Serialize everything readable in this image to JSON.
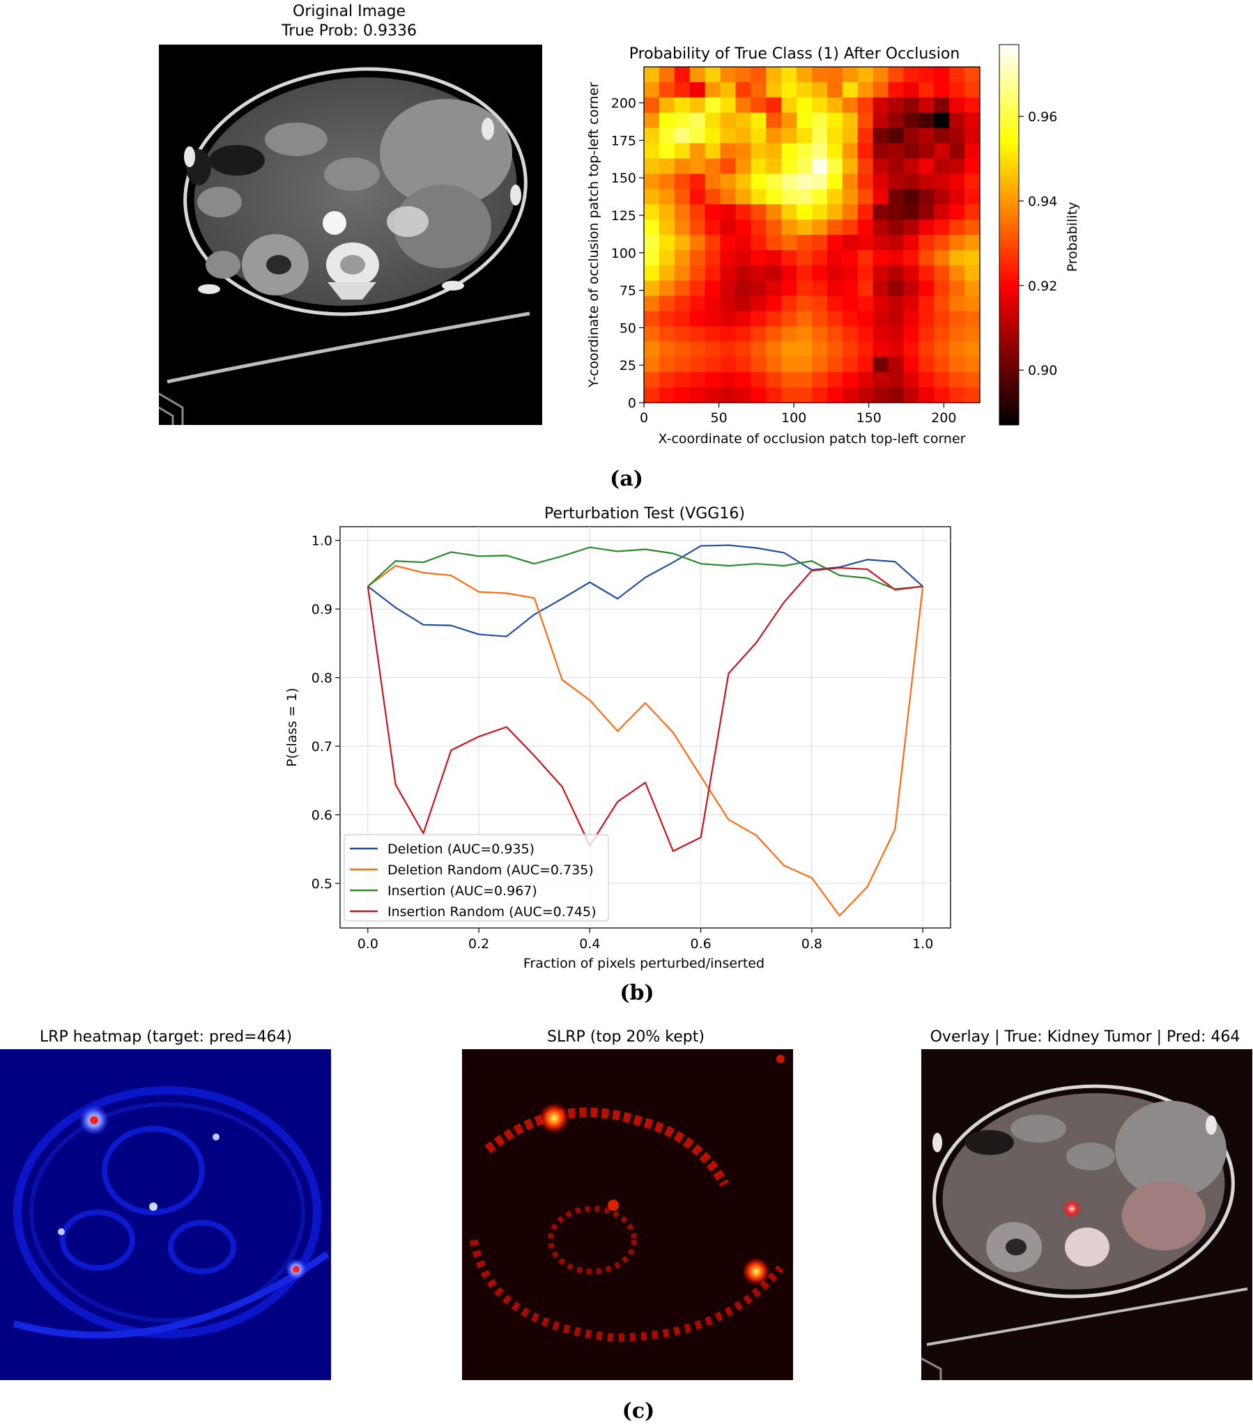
{
  "panel_a": {
    "caption": "(a)",
    "original": {
      "title": "Original Image",
      "subtitle": "True Prob: 0.9336"
    }
  },
  "panel_b": {
    "caption": "(b)"
  },
  "panel_c": {
    "caption": "(c)",
    "lrp_title": "LRP heatmap (target: pred=464)",
    "slrp_title": "SLRP (top 20% kept)",
    "overlay_title": "Overlay | True: Kidney Tumor | Pred: 464"
  },
  "chart_data": [
    {
      "type": "heatmap",
      "title": "Probability of True Class (1) After Occlusion",
      "xlabel": "X-coordinate of occlusion patch top-left corner",
      "ylabel": "Y-coordinate of occlusion patch top-left corner",
      "x_ticks": [
        "0",
        "50",
        "100",
        "150",
        "200"
      ],
      "y_ticks": [
        "0",
        "25",
        "50",
        "75",
        "100",
        "125",
        "150",
        "175",
        "200"
      ],
      "xlim": [
        0,
        224
      ],
      "ylim": [
        0,
        224
      ],
      "grid_cells": 22,
      "colorbar": {
        "label": "Probability",
        "min": 0.887,
        "max": 0.977,
        "ticks": [
          "0.90",
          "0.92",
          "0.94",
          "0.96"
        ],
        "tick_values": [
          0.9,
          0.92,
          0.94,
          0.96
        ],
        "cmap": "hot"
      },
      "rows_top_to_bottom": [
        [
          0.945,
          0.935,
          0.922,
          0.94,
          0.948,
          0.938,
          0.935,
          0.932,
          0.944,
          0.95,
          0.942,
          0.936,
          0.935,
          0.94,
          0.944,
          0.938,
          0.93,
          0.924,
          0.922,
          0.92,
          0.926,
          0.93
        ],
        [
          0.94,
          0.93,
          0.925,
          0.918,
          0.94,
          0.945,
          0.928,
          0.934,
          0.946,
          0.952,
          0.948,
          0.944,
          0.935,
          0.95,
          0.94,
          0.933,
          0.922,
          0.918,
          0.925,
          0.92,
          0.924,
          0.928
        ],
        [
          0.932,
          0.944,
          0.95,
          0.946,
          0.958,
          0.95,
          0.936,
          0.93,
          0.925,
          0.948,
          0.954,
          0.95,
          0.944,
          0.936,
          0.928,
          0.914,
          0.91,
          0.906,
          0.913,
          0.904,
          0.918,
          0.922
        ],
        [
          0.94,
          0.955,
          0.958,
          0.962,
          0.95,
          0.944,
          0.946,
          0.952,
          0.932,
          0.94,
          0.955,
          0.96,
          0.952,
          0.946,
          0.93,
          0.912,
          0.906,
          0.9,
          0.896,
          0.887,
          0.91,
          0.916
        ],
        [
          0.948,
          0.958,
          0.965,
          0.96,
          0.952,
          0.946,
          0.944,
          0.95,
          0.94,
          0.944,
          0.95,
          0.962,
          0.95,
          0.945,
          0.926,
          0.902,
          0.898,
          0.906,
          0.91,
          0.905,
          0.908,
          0.915
        ],
        [
          0.95,
          0.956,
          0.95,
          0.94,
          0.948,
          0.936,
          0.938,
          0.946,
          0.944,
          0.955,
          0.96,
          0.965,
          0.952,
          0.94,
          0.924,
          0.906,
          0.908,
          0.904,
          0.908,
          0.914,
          0.906,
          0.918
        ],
        [
          0.946,
          0.944,
          0.938,
          0.94,
          0.936,
          0.93,
          0.94,
          0.95,
          0.946,
          0.956,
          0.962,
          0.975,
          0.96,
          0.944,
          0.928,
          0.912,
          0.908,
          0.912,
          0.918,
          0.91,
          0.912,
          0.92
        ],
        [
          0.94,
          0.936,
          0.93,
          0.924,
          0.936,
          0.94,
          0.946,
          0.955,
          0.96,
          0.966,
          0.97,
          0.968,
          0.955,
          0.938,
          0.926,
          0.916,
          0.91,
          0.908,
          0.912,
          0.914,
          0.918,
          0.924
        ],
        [
          0.944,
          0.94,
          0.932,
          0.922,
          0.93,
          0.936,
          0.942,
          0.95,
          0.956,
          0.962,
          0.964,
          0.958,
          0.948,
          0.94,
          0.93,
          0.918,
          0.902,
          0.898,
          0.904,
          0.91,
          0.916,
          0.922
        ],
        [
          0.95,
          0.944,
          0.936,
          0.928,
          0.92,
          0.918,
          0.924,
          0.93,
          0.938,
          0.948,
          0.954,
          0.95,
          0.944,
          0.936,
          0.924,
          0.904,
          0.902,
          0.9,
          0.906,
          0.914,
          0.92,
          0.926
        ],
        [
          0.956,
          0.946,
          0.938,
          0.93,
          0.922,
          0.916,
          0.92,
          0.926,
          0.932,
          0.94,
          0.944,
          0.94,
          0.932,
          0.928,
          0.92,
          0.91,
          0.906,
          0.91,
          0.918,
          0.922,
          0.928,
          0.932
        ],
        [
          0.96,
          0.95,
          0.944,
          0.936,
          0.928,
          0.92,
          0.918,
          0.924,
          0.93,
          0.934,
          0.93,
          0.928,
          0.92,
          0.916,
          0.918,
          0.914,
          0.912,
          0.918,
          0.926,
          0.93,
          0.936,
          0.94
        ],
        [
          0.958,
          0.948,
          0.94,
          0.932,
          0.926,
          0.918,
          0.916,
          0.92,
          0.918,
          0.924,
          0.928,
          0.924,
          0.918,
          0.92,
          0.926,
          0.92,
          0.918,
          0.922,
          0.93,
          0.936,
          0.944,
          0.946
        ],
        [
          0.952,
          0.944,
          0.938,
          0.93,
          0.924,
          0.916,
          0.912,
          0.914,
          0.912,
          0.918,
          0.924,
          0.92,
          0.916,
          0.918,
          0.924,
          0.914,
          0.91,
          0.916,
          0.924,
          0.93,
          0.938,
          0.944
        ],
        [
          0.944,
          0.938,
          0.932,
          0.926,
          0.92,
          0.914,
          0.91,
          0.912,
          0.916,
          0.92,
          0.926,
          0.924,
          0.918,
          0.92,
          0.926,
          0.912,
          0.906,
          0.912,
          0.92,
          0.928,
          0.934,
          0.94
        ],
        [
          0.936,
          0.93,
          0.926,
          0.922,
          0.918,
          0.914,
          0.912,
          0.916,
          0.92,
          0.926,
          0.93,
          0.928,
          0.922,
          0.92,
          0.922,
          0.916,
          0.912,
          0.916,
          0.924,
          0.93,
          0.936,
          0.938
        ],
        [
          0.93,
          0.926,
          0.924,
          0.92,
          0.918,
          0.916,
          0.918,
          0.922,
          0.926,
          0.93,
          0.934,
          0.93,
          0.926,
          0.922,
          0.92,
          0.914,
          0.912,
          0.918,
          0.924,
          0.928,
          0.932,
          0.934
        ],
        [
          0.934,
          0.93,
          0.928,
          0.926,
          0.924,
          0.922,
          0.924,
          0.928,
          0.932,
          0.936,
          0.938,
          0.934,
          0.93,
          0.926,
          0.922,
          0.916,
          0.914,
          0.92,
          0.926,
          0.93,
          0.934,
          0.936
        ],
        [
          0.938,
          0.934,
          0.932,
          0.93,
          0.928,
          0.926,
          0.928,
          0.932,
          0.936,
          0.94,
          0.94,
          0.936,
          0.932,
          0.928,
          0.924,
          0.918,
          0.916,
          0.922,
          0.928,
          0.932,
          0.936,
          0.938
        ],
        [
          0.936,
          0.932,
          0.93,
          0.928,
          0.926,
          0.924,
          0.926,
          0.93,
          0.934,
          0.938,
          0.938,
          0.934,
          0.93,
          0.926,
          0.922,
          0.902,
          0.91,
          0.92,
          0.926,
          0.93,
          0.934,
          0.936
        ],
        [
          0.93,
          0.926,
          0.924,
          0.922,
          0.92,
          0.918,
          0.92,
          0.924,
          0.928,
          0.932,
          0.932,
          0.928,
          0.924,
          0.92,
          0.916,
          0.912,
          0.91,
          0.916,
          0.922,
          0.926,
          0.93,
          0.932
        ],
        [
          0.926,
          0.922,
          0.92,
          0.918,
          0.916,
          0.914,
          0.916,
          0.92,
          0.924,
          0.928,
          0.928,
          0.924,
          0.92,
          0.916,
          0.912,
          0.908,
          0.906,
          0.912,
          0.918,
          0.922,
          0.926,
          0.928
        ]
      ]
    },
    {
      "type": "line",
      "title": "Perturbation Test (VGG16)",
      "xlabel": "Fraction of pixels perturbed/inserted",
      "ylabel": "P(class = 1)",
      "xlim": [
        -0.05,
        1.05
      ],
      "ylim": [
        0.435,
        1.02
      ],
      "x_ticks": [
        0.0,
        0.2,
        0.4,
        0.6,
        0.8,
        1.0
      ],
      "y_ticks": [
        0.5,
        0.6,
        0.7,
        0.8,
        0.9,
        1.0
      ],
      "grid": true,
      "legend_position": "lower-left",
      "x": [
        0.0,
        0.05,
        0.1,
        0.15,
        0.2,
        0.25,
        0.3,
        0.35,
        0.4,
        0.45,
        0.5,
        0.55,
        0.6,
        0.65,
        0.7,
        0.75,
        0.8,
        0.85,
        0.9,
        0.95,
        1.0
      ],
      "series": [
        {
          "name": "Deletion (AUC=0.935)",
          "color": "#1f4fa0",
          "values": [
            0.933,
            0.902,
            0.877,
            0.876,
            0.863,
            0.86,
            0.892,
            0.915,
            0.939,
            0.915,
            0.946,
            0.968,
            0.992,
            0.993,
            0.989,
            0.982,
            0.957,
            0.961,
            0.972,
            0.969,
            0.933
          ]
        },
        {
          "name": "Deletion Random (AUC=0.735)",
          "color": "#ff6a10",
          "values": [
            0.933,
            0.963,
            0.953,
            0.949,
            0.925,
            0.923,
            0.916,
            0.797,
            0.767,
            0.722,
            0.763,
            0.72,
            0.656,
            0.593,
            0.57,
            0.526,
            0.508,
            0.453,
            0.495,
            0.579,
            0.933
          ]
        },
        {
          "name": "Insertion (AUC=0.967)",
          "color": "#2a8a2a",
          "values": [
            0.933,
            0.97,
            0.968,
            0.983,
            0.977,
            0.978,
            0.966,
            0.977,
            0.99,
            0.984,
            0.987,
            0.981,
            0.966,
            0.963,
            0.966,
            0.963,
            0.97,
            0.949,
            0.945,
            0.929,
            0.933
          ]
        },
        {
          "name": "Insertion Random (AUC=0.745)",
          "color": "#c8141a",
          "values": [
            0.933,
            0.644,
            0.573,
            0.694,
            0.714,
            0.728,
            0.686,
            0.641,
            0.555,
            0.619,
            0.647,
            0.547,
            0.567,
            0.806,
            0.851,
            0.91,
            0.956,
            0.96,
            0.958,
            0.928,
            0.933
          ]
        }
      ]
    }
  ]
}
